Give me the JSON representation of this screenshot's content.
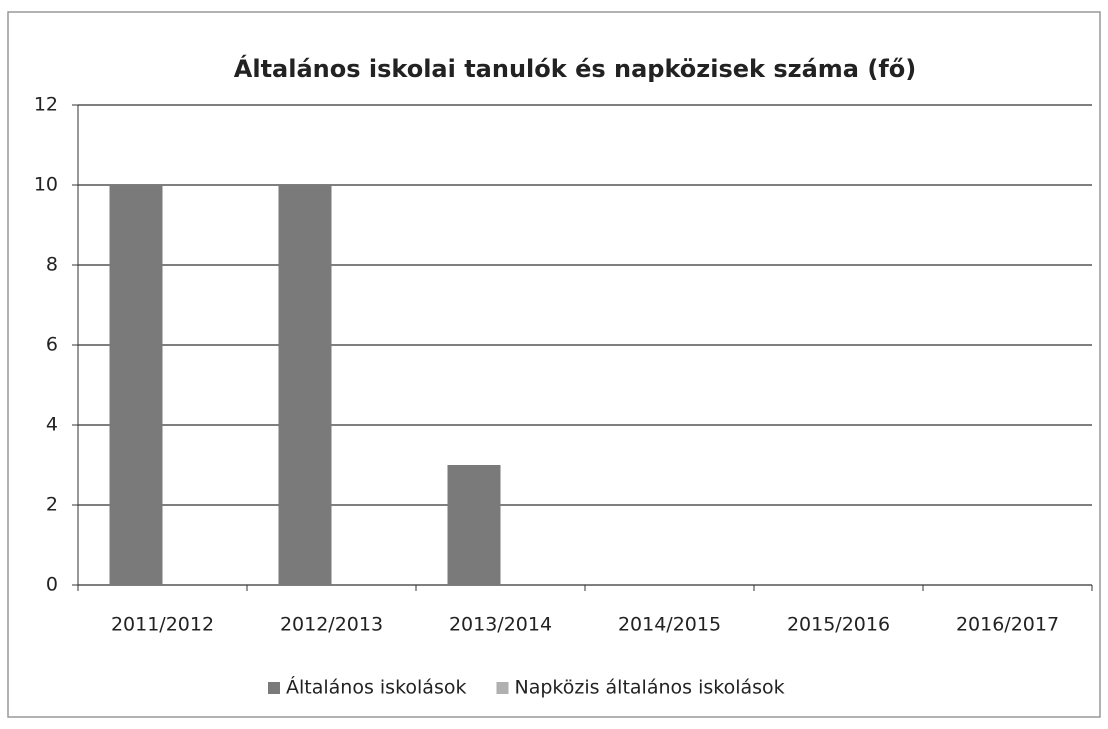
{
  "chart_data": {
    "type": "bar",
    "title": "Általános iskolai tanulók és napközisek száma (fő)",
    "categories": [
      "2011/2012",
      "2012/2013",
      "2013/2014",
      "2014/2015",
      "2015/2016",
      "2016/2017"
    ],
    "series": [
      {
        "name": "Általános iskolások",
        "color": "#7a7a7a",
        "values": [
          10,
          10,
          3,
          0,
          0,
          0
        ]
      },
      {
        "name": "Napközis általános iskolások",
        "color": "#b0b0b0",
        "values": [
          0,
          0,
          0,
          0,
          0,
          0
        ]
      }
    ],
    "ylim": [
      0,
      12
    ],
    "yticks": [
      0,
      2,
      4,
      6,
      8,
      10,
      12
    ],
    "grid": true,
    "legend": "bottom"
  }
}
